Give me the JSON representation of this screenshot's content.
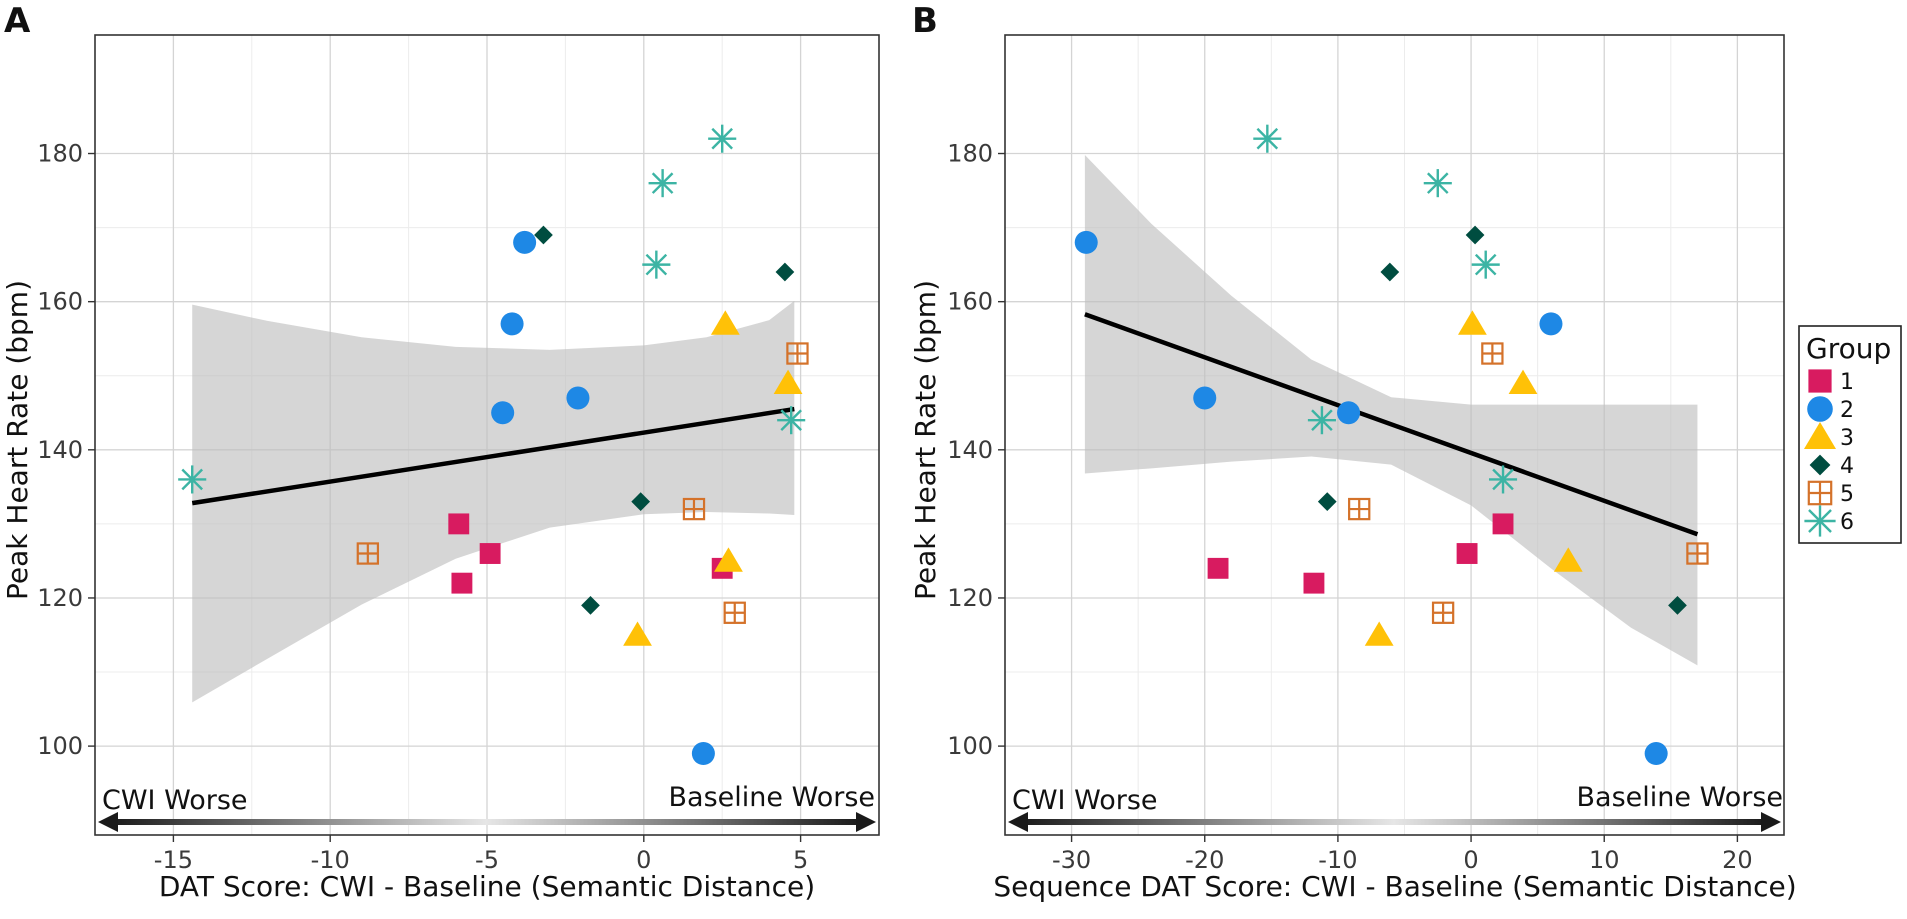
{
  "legend": {
    "title": "Group",
    "groups": [
      {
        "label": "1",
        "color": "#D81B60",
        "shape": "square"
      },
      {
        "label": "2",
        "color": "#1E88E5",
        "shape": "circle"
      },
      {
        "label": "3",
        "color": "#FFC107",
        "shape": "triangle"
      },
      {
        "label": "4",
        "color": "#004D40",
        "shape": "diamond"
      },
      {
        "label": "5",
        "color": "#D4722A",
        "shape": "boxplus"
      },
      {
        "label": "6",
        "color": "#3CB4A4",
        "shape": "asterisk"
      }
    ]
  },
  "chart_data": [
    {
      "type": "scatter",
      "panel": "A",
      "xlabel": "DAT Score: CWI - Baseline (Semantic Distance)",
      "ylabel": "Peak Heart Rate (bpm)",
      "xlim": [
        -17.5,
        7.5
      ],
      "ylim": [
        88,
        196
      ],
      "xticks": [
        -15,
        -10,
        -5,
        0,
        5
      ],
      "yticks": [
        100,
        120,
        140,
        160,
        180
      ],
      "annotations": {
        "left": "CWI Worse",
        "right": "Baseline Worse"
      },
      "regression": {
        "x": [
          -14.4,
          4.8
        ],
        "y": [
          132.8,
          145.5
        ]
      },
      "ci": {
        "x": [
          -14.4,
          -12,
          -9,
          -6,
          -3,
          0,
          2,
          4,
          4.8
        ],
        "upper": [
          159.6,
          157.4,
          155.2,
          153.9,
          153.5,
          154.1,
          155.2,
          157.5,
          160.1
        ],
        "lower": [
          105.9,
          111.8,
          119.1,
          125.3,
          129.5,
          131.3,
          131.6,
          131.4,
          131.2
        ]
      },
      "series": [
        {
          "name": "1",
          "points": [
            [
              -5.9,
              130
            ],
            [
              -5.8,
              122
            ],
            [
              -4.9,
              126
            ],
            [
              2.5,
              124
            ]
          ]
        },
        {
          "name": "2",
          "points": [
            [
              -3.8,
              168
            ],
            [
              -4.2,
              157
            ],
            [
              -4.5,
              145
            ],
            [
              -2.1,
              147
            ],
            [
              1.9,
              99
            ]
          ]
        },
        {
          "name": "3",
          "points": [
            [
              2.6,
              157
            ],
            [
              4.6,
              149
            ],
            [
              2.7,
              125
            ],
            [
              -0.2,
              115
            ]
          ]
        },
        {
          "name": "4",
          "points": [
            [
              -3.2,
              169
            ],
            [
              4.5,
              164
            ],
            [
              -0.1,
              133
            ],
            [
              -1.7,
              119
            ]
          ]
        },
        {
          "name": "5",
          "points": [
            [
              4.9,
              153
            ],
            [
              1.6,
              132
            ],
            [
              2.9,
              118
            ],
            [
              -8.8,
              126
            ]
          ]
        },
        {
          "name": "6",
          "points": [
            [
              2.5,
              182
            ],
            [
              0.6,
              176
            ],
            [
              0.4,
              165
            ],
            [
              4.7,
              144
            ],
            [
              -14.4,
              136
            ]
          ]
        }
      ]
    },
    {
      "type": "scatter",
      "panel": "B",
      "xlabel": "Sequence DAT Score: CWI - Baseline (Semantic Distance)",
      "ylabel": "Peak Heart Rate (bpm)",
      "xlim": [
        -35,
        23.5
      ],
      "ylim": [
        88,
        196
      ],
      "xticks": [
        -30,
        -20,
        -10,
        0,
        10,
        20
      ],
      "yticks": [
        100,
        120,
        140,
        160,
        180
      ],
      "annotations": {
        "left": "CWI Worse",
        "right": "Baseline Worse"
      },
      "regression": {
        "x": [
          -29,
          17
        ],
        "y": [
          158.3,
          128.6
        ]
      },
      "ci": {
        "x": [
          -29,
          -24,
          -18,
          -12,
          -6,
          0,
          6,
          12,
          17
        ],
        "upper": [
          179.8,
          170.5,
          160.8,
          152.2,
          147.1,
          146.1,
          146.1,
          146.1,
          146.1
        ],
        "lower": [
          136.8,
          137.5,
          138.4,
          139.1,
          138.0,
          132.5,
          124.0,
          116.0,
          110.9
        ]
      },
      "series": [
        {
          "name": "1",
          "points": [
            [
              2.4,
              130
            ],
            [
              -0.3,
              126
            ],
            [
              -19,
              124
            ],
            [
              -11.8,
              122
            ]
          ]
        },
        {
          "name": "2",
          "points": [
            [
              -28.9,
              168
            ],
            [
              6,
              157
            ],
            [
              -20,
              147
            ],
            [
              -9.2,
              145
            ],
            [
              13.9,
              99
            ]
          ]
        },
        {
          "name": "3",
          "points": [
            [
              0.1,
              157
            ],
            [
              3.9,
              149
            ],
            [
              7.3,
              125
            ],
            [
              -6.9,
              115
            ]
          ]
        },
        {
          "name": "4",
          "points": [
            [
              0.3,
              169
            ],
            [
              -6.1,
              164
            ],
            [
              -10.8,
              133
            ],
            [
              15.5,
              119
            ]
          ]
        },
        {
          "name": "5",
          "points": [
            [
              1.6,
              153
            ],
            [
              -8.4,
              132
            ],
            [
              -2.1,
              118
            ],
            [
              17,
              126
            ]
          ]
        },
        {
          "name": "6",
          "points": [
            [
              -15.3,
              182
            ],
            [
              -2.5,
              176
            ],
            [
              1.1,
              165
            ],
            [
              -11.2,
              144
            ],
            [
              2.4,
              136
            ]
          ]
        }
      ]
    }
  ]
}
